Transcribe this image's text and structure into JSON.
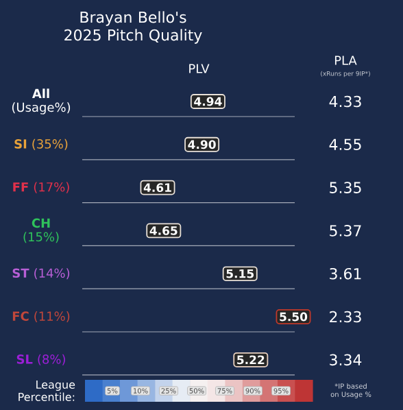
{
  "chart_data": {
    "type": "other",
    "title": "Brayan Bello's 2025 Pitch Quality",
    "categories": [
      "**All** (Usage%)",
      "**SI** (35%)",
      "**FF** (17%)",
      "**CH** (15%)",
      "**ST** (14%)",
      "**FC** (11%)",
      "**SL** (8%)"
    ],
    "colors": [
      "#ffffff",
      "#e8a23a",
      "#e0314b",
      "#2fc25b",
      "#b85fd6",
      "#c0473b",
      "#9b1fd6"
    ],
    "data_labels": true,
    "series": [
      {
        "name": "PLV",
        "values": [
          4.94,
          4.9,
          4.61,
          4.65,
          5.15,
          5.5,
          5.22
        ],
        "value_labels": [
          "4.94",
          "4.90",
          "4.61",
          "4.65",
          "5.15",
          "5.50",
          "5.22"
        ],
        "colors": [
          "#e8e0d8",
          "#e8e0d8",
          "#e8e0d8",
          "#e8e0d8",
          "#e8e0d8",
          "#c0392b",
          "#e8d0c0"
        ]
      },
      {
        "name": "PLA",
        "values": [
          4.33,
          4.55,
          5.35,
          5.37,
          3.61,
          2.33,
          3.34
        ],
        "value_labels": [
          "4.33",
          "4.55",
          "5.35",
          "5.37",
          "3.61",
          "2.33",
          "3.34"
        ]
      }
    ],
    "legend_title": "League Percentile:",
    "annotations": [
      "(xRuns per 9IP*)",
      "5%",
      "10%",
      "25%",
      "50%",
      "75%",
      "90%",
      "95%",
      "*IP based on Usage %"
    ]
  }
}
